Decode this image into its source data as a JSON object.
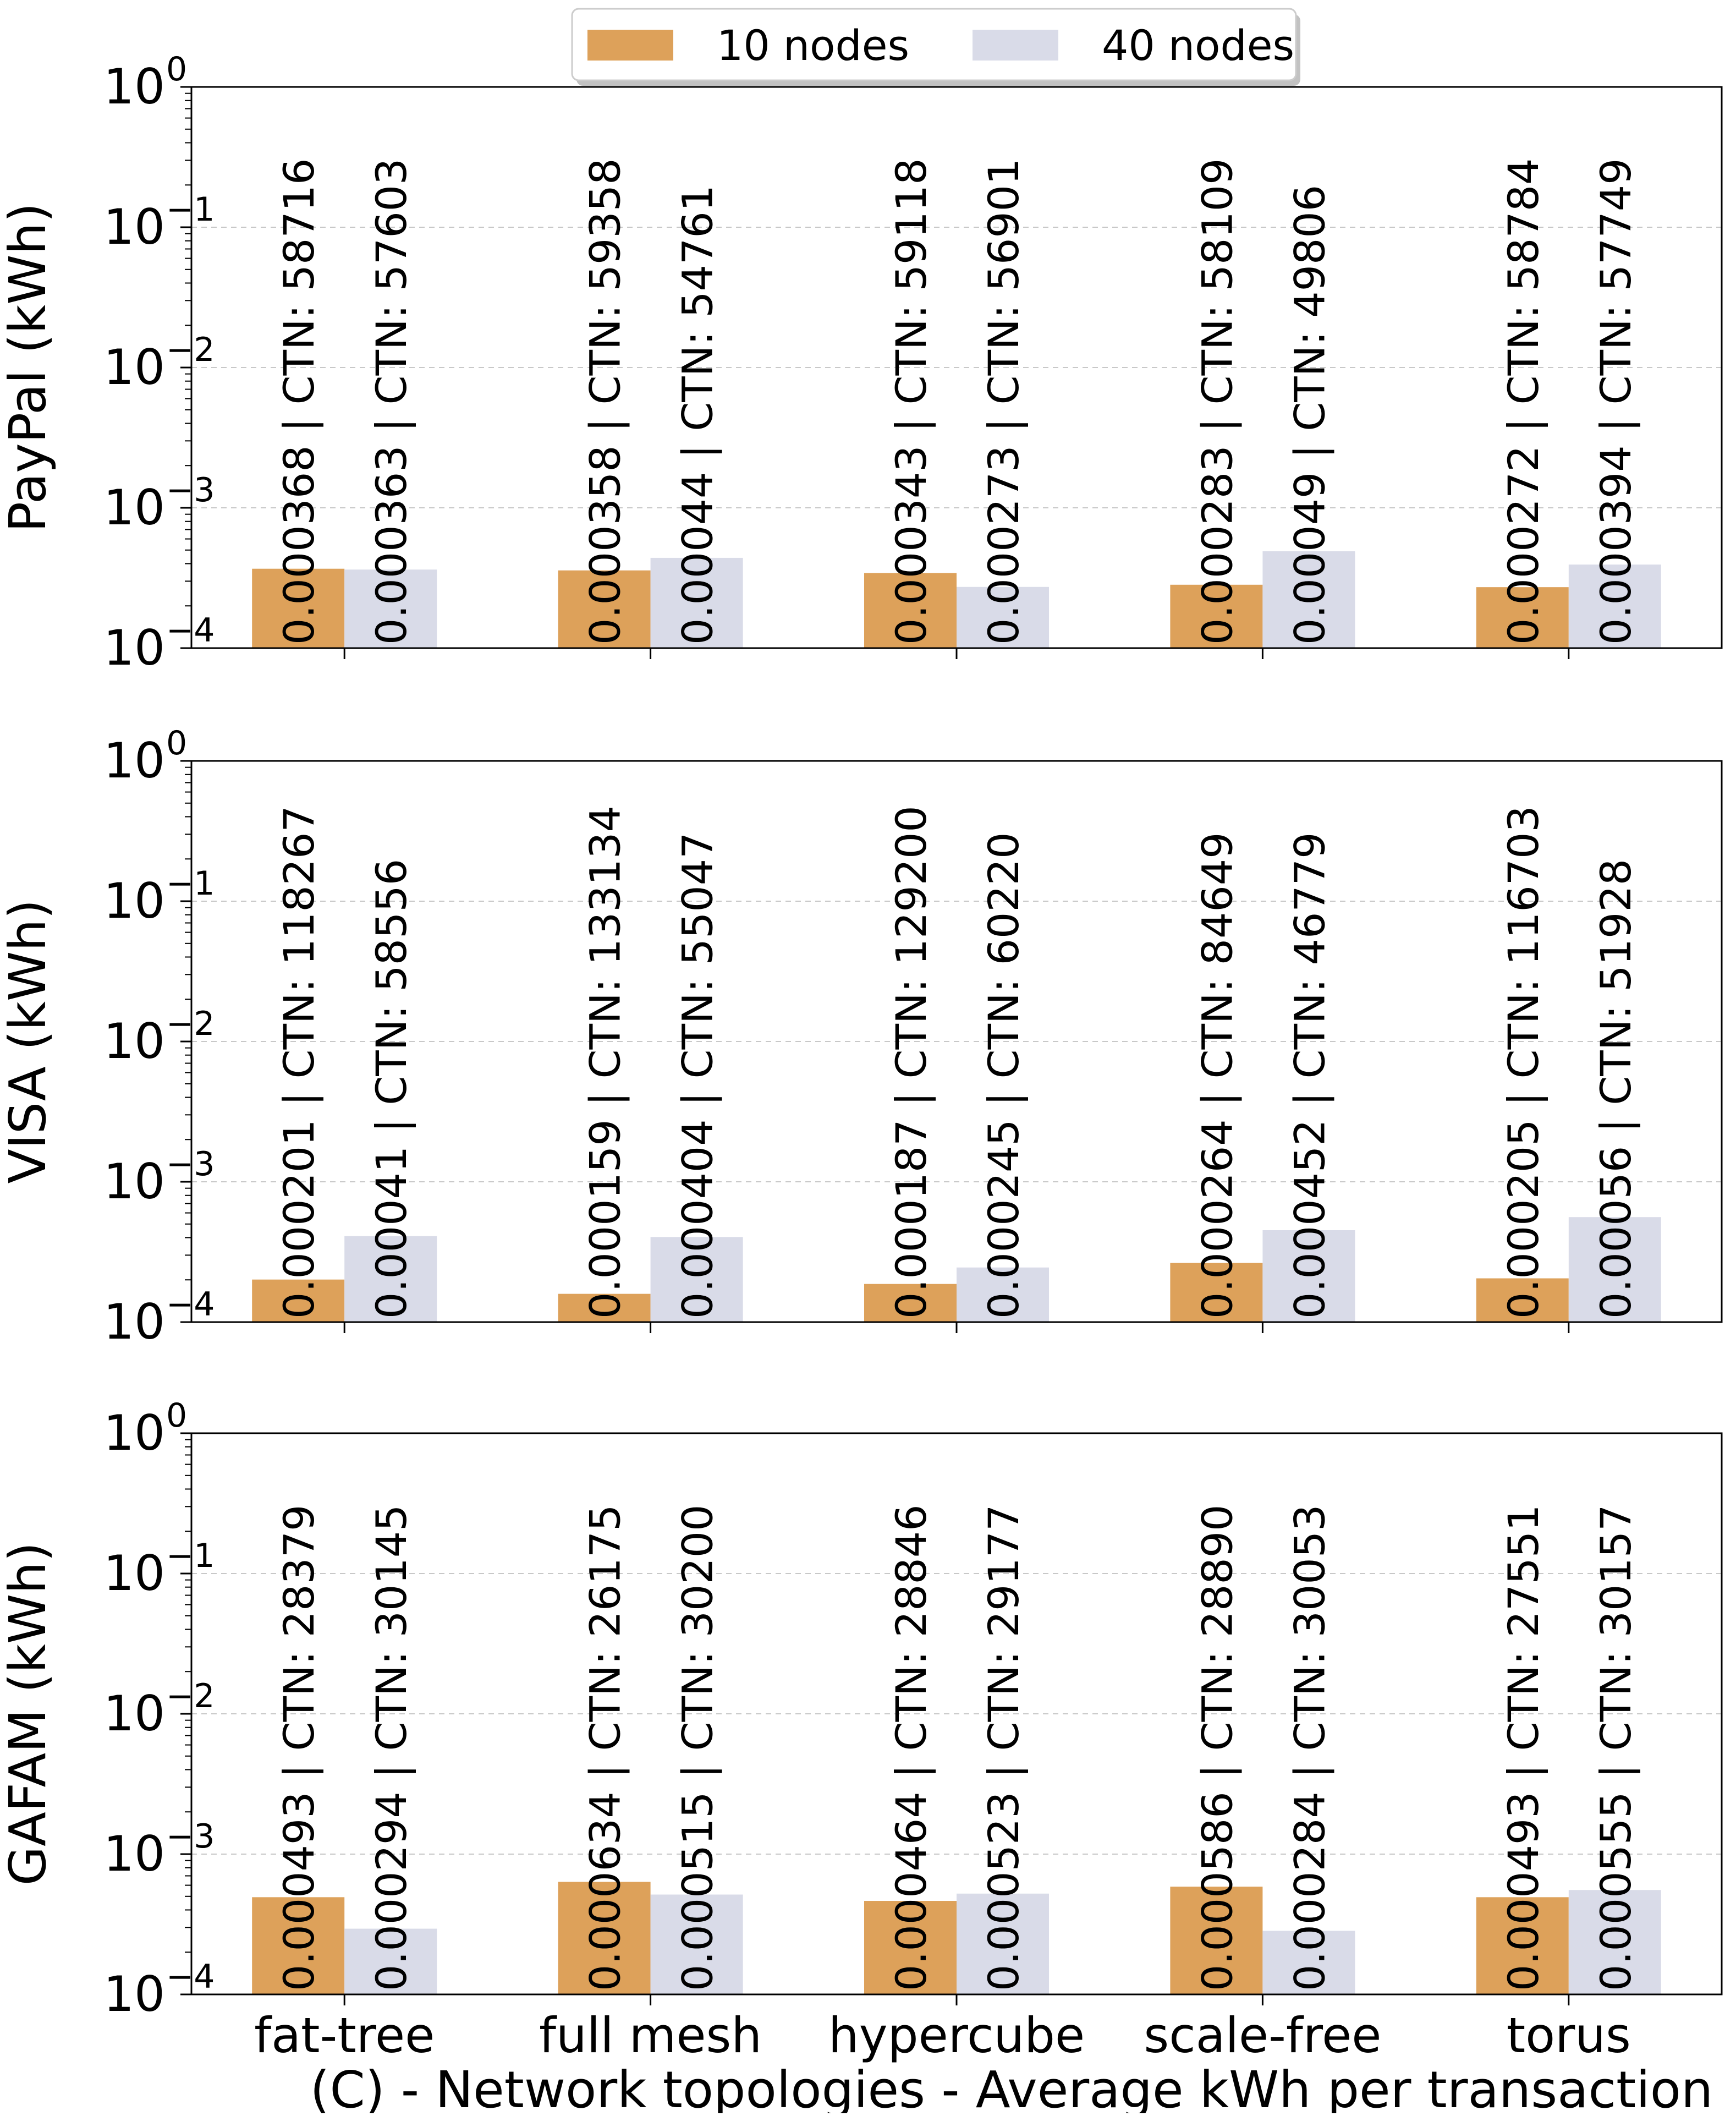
{
  "chart_data": {
    "type": "bar",
    "xlabel": "(C) - Network topologies - Average kWh per transaction",
    "categories": [
      "fat-tree",
      "full mesh",
      "hypercube",
      "scale-free",
      "torus"
    ],
    "legend": {
      "placement": "top-center",
      "entries": [
        {
          "name": "10 nodes",
          "color": "#dda15a"
        },
        {
          "name": "40 nodes",
          "color": "#d9dbe8"
        }
      ]
    },
    "y_scale": "log",
    "ylim": [
      0.0001,
      1
    ],
    "y_ticks": [
      {
        "base": "10",
        "exp": "0",
        "value": 1
      },
      {
        "base": "10",
        "exp": "−1",
        "value": 0.1
      },
      {
        "base": "10",
        "exp": "−2",
        "value": 0.01
      },
      {
        "base": "10",
        "exp": "−3",
        "value": 0.001
      },
      {
        "base": "10",
        "exp": "−4",
        "value": 0.0001
      }
    ],
    "grid": "horizontal dashed",
    "panels": [
      {
        "ylabel": "PayPal (kWh)",
        "series": [
          {
            "name": "10 nodes",
            "values": [
              0.000368,
              0.000358,
              0.000343,
              0.000283,
              0.000272
            ],
            "labels": [
              "0.000368 | CTN: 58716",
              "0.000358 | CTN: 59358",
              "0.000343 | CTN: 59118",
              "0.000283 | CTN: 58109",
              "0.000272 | CTN: 58784"
            ]
          },
          {
            "name": "40 nodes",
            "values": [
              0.000363,
              0.00044,
              0.000273,
              0.00049,
              0.000394
            ],
            "labels": [
              "0.000363 | CTN: 57603",
              "0.00044 | CTN: 54761",
              "0.000273 | CTN: 56901",
              "0.00049 | CTN: 49806",
              "0.000394 | CTN: 57749"
            ]
          }
        ]
      },
      {
        "ylabel": "VISA (kWh)",
        "series": [
          {
            "name": "10 nodes",
            "values": [
              0.000201,
              0.000159,
              0.000187,
              0.000264,
              0.000205
            ],
            "labels": [
              "0.000201 | CTN: 118267",
              "0.000159 | CTN: 133134",
              "0.000187 | CTN: 129200",
              "0.000264 | CTN: 84649",
              "0.000205 | CTN: 116703"
            ]
          },
          {
            "name": "40 nodes",
            "values": [
              0.00041,
              0.000404,
              0.000245,
              0.000452,
              0.00056
            ],
            "labels": [
              "0.00041 | CTN: 58556",
              "0.000404 | CTN: 55047",
              "0.000245 | CTN: 60220",
              "0.000452 | CTN: 46779",
              "0.00056 | CTN: 51928"
            ]
          }
        ]
      },
      {
        "ylabel": "GAFAM (kWh)",
        "series": [
          {
            "name": "10 nodes",
            "values": [
              0.000493,
              0.000634,
              0.000464,
              0.000586,
              0.000493
            ],
            "labels": [
              "0.000493 | CTN: 28379",
              "0.000634 | CTN: 26175",
              "0.000464 | CTN: 28846",
              "0.000586 | CTN: 28890",
              "0.000493 | CTN: 27551"
            ]
          },
          {
            "name": "40 nodes",
            "values": [
              0.000294,
              0.000515,
              0.000523,
              0.000284,
              0.000555
            ],
            "labels": [
              "0.000294 | CTN: 30145",
              "0.000515 | CTN: 30200",
              "0.000523 | CTN: 29177",
              "0.000284 | CTN: 30053",
              "0.000555 | CTN: 30157"
            ]
          }
        ]
      }
    ]
  }
}
